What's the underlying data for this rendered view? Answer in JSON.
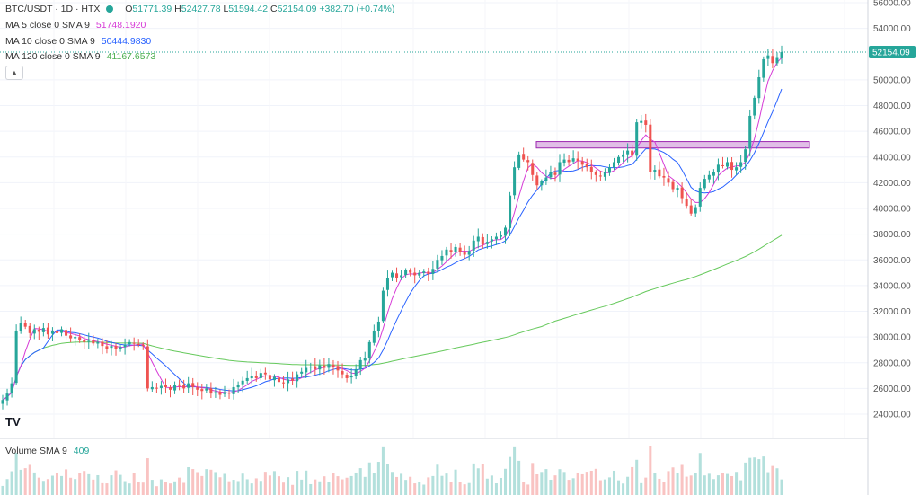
{
  "header": {
    "symbol": "BTC/USDT · 1D · HTX",
    "open_label": "O",
    "open": "51771.39",
    "high_label": "H",
    "high": "52427.78",
    "low_label": "L",
    "low": "51594.42",
    "close_label": "C",
    "close": "52154.09",
    "change": "+382.70 (+0.74%)"
  },
  "indicators": {
    "ma5": {
      "label": "MA 5 close 0 SMA 9",
      "value": "51748.1920",
      "color": "#d63ad6"
    },
    "ma10": {
      "label": "MA 10 close 0 SMA 9",
      "value": "50444.9830",
      "color": "#2962ff"
    },
    "ma120": {
      "label": "MA 120 close 0 SMA 9",
      "value": "41167.6573",
      "color": "#66c95c"
    }
  },
  "volume": {
    "label": "Volume SMA 9",
    "value": "409"
  },
  "collapse_icon": "chevron-up-icon",
  "logo": "TV",
  "colors": {
    "up": "#26a69a",
    "down": "#ef5350",
    "zone": "#e1bee7"
  },
  "chart_data": {
    "type": "candlestick",
    "price_axis": {
      "ylim": [
        22500,
        57000
      ],
      "ticks": [
        "24000.00",
        "26000.00",
        "28000.00",
        "30000.00",
        "32000.00",
        "34000.00",
        "36000.00",
        "38000.00",
        "40000.00",
        "42000.00",
        "44000.00",
        "46000.00",
        "48000.00",
        "50000.00",
        "54000.00",
        "56000.00"
      ],
      "last_price_label": "52154.09",
      "last_price": 52154.09
    },
    "resistance_zone": {
      "from": 44700,
      "to": 45200
    },
    "closes": [
      25100,
      25600,
      26400,
      30500,
      31100,
      30800,
      30300,
      30600,
      30400,
      30700,
      30200,
      30500,
      30300,
      30600,
      30100,
      29900,
      30000,
      29800,
      29600,
      29700,
      29500,
      29600,
      29300,
      29100,
      29300,
      29100,
      29200,
      29400,
      29600,
      29500,
      29400,
      29300,
      26000,
      26100,
      26000,
      26200,
      26100,
      25900,
      26300,
      26200,
      26000,
      26400,
      26100,
      25900,
      25800,
      26000,
      25600,
      25700,
      25500,
      25700,
      25600,
      26100,
      26300,
      26600,
      26800,
      27000,
      26800,
      27200,
      27100,
      26700,
      26900,
      26500,
      26400,
      26700,
      26600,
      27100,
      27300,
      27600,
      27700,
      27500,
      27800,
      27600,
      27900,
      27700,
      27400,
      27100,
      26800,
      27000,
      27500,
      28200,
      28400,
      29600,
      30500,
      31200,
      33600,
      34600,
      35000,
      34600,
      34800,
      35200,
      35000,
      34800,
      35000,
      35100,
      34900,
      35300,
      36000,
      36300,
      36800,
      36600,
      37000,
      36600,
      36400,
      36700,
      37500,
      37800,
      37200,
      37400,
      37600,
      37800,
      37900,
      38500,
      41000,
      43200,
      44200,
      43800,
      43600,
      42600,
      41800,
      42100,
      42400,
      42800,
      42600,
      43600,
      43800,
      43600,
      43900,
      43700,
      43400,
      43200,
      42800,
      42600,
      42500,
      42800,
      43200,
      43600,
      44000,
      44200,
      44500,
      44100,
      46700,
      46800,
      46500,
      42800,
      43000,
      42500,
      42400,
      42000,
      41500,
      41600,
      40800,
      40200,
      39600,
      40100,
      41600,
      42300,
      42600,
      42800,
      43400,
      43300,
      43600,
      43000,
      43200,
      43600,
      44600,
      47200,
      48600,
      50200,
      51600,
      51900,
      51300,
      51700,
      52154
    ]
  }
}
